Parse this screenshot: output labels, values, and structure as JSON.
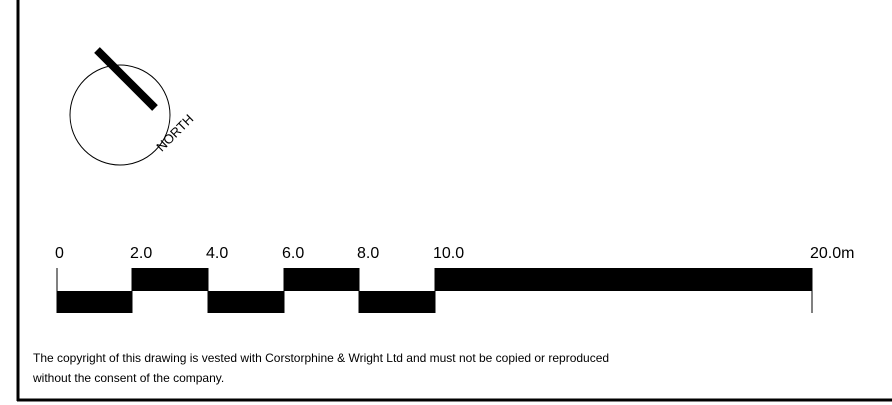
{
  "north_label": "NORTH",
  "scale": {
    "labels": [
      "0",
      "2.0",
      "4.0",
      "6.0",
      "8.0",
      "10.0",
      "20.0m"
    ]
  },
  "copyright": {
    "lines": [
      "The copyright of this drawing is vested with Corstorphine & Wright Ltd and must not be copied or reproduced",
      "without the consent of the company."
    ]
  }
}
